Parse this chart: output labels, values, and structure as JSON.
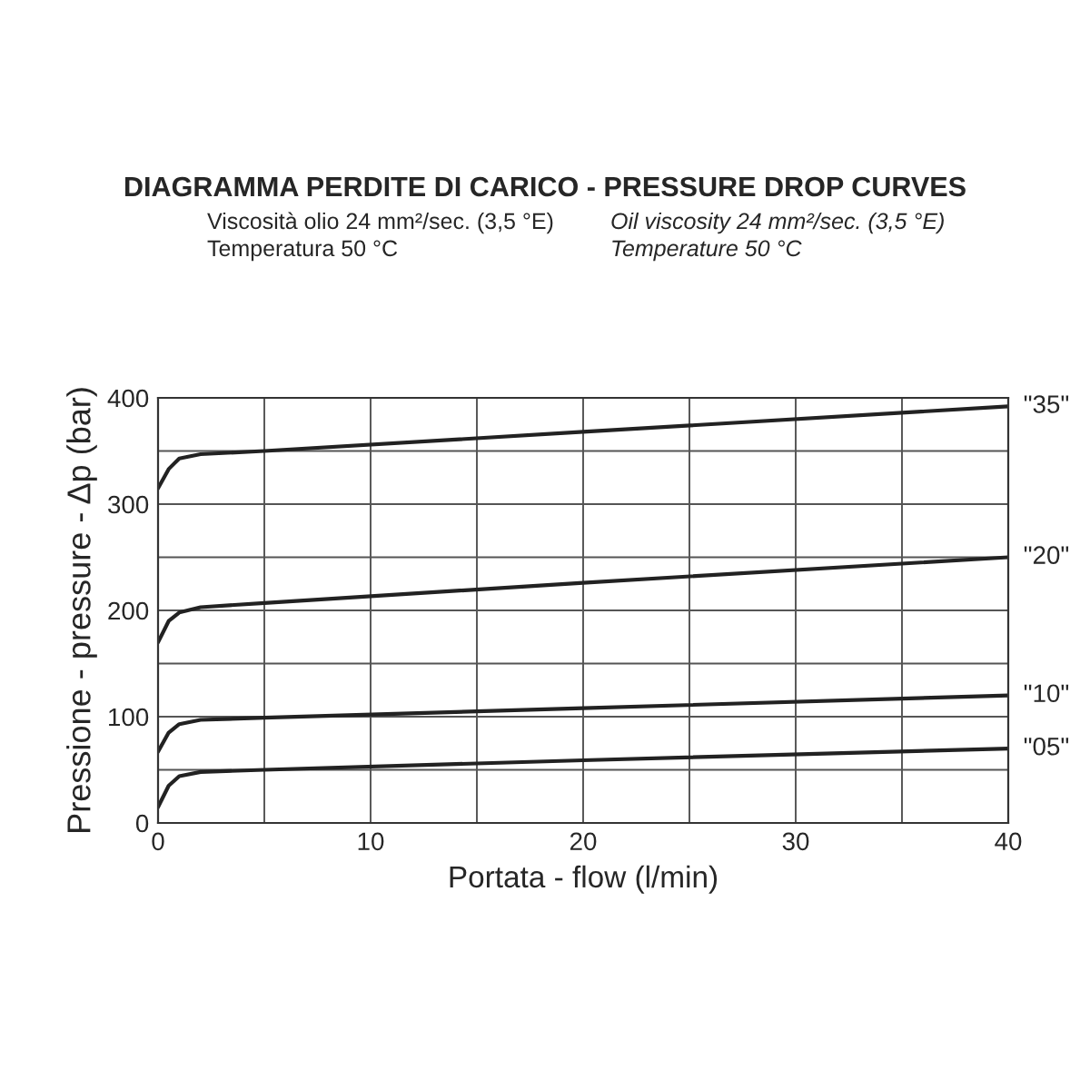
{
  "chart_data": {
    "type": "line",
    "title": "DIAGRAMMA PERDITE DI CARICO - PRESSURE DROP CURVES",
    "annotations": [
      "Viscosità olio 24 mm²/sec. (3,5 °E)",
      "Temperatura 50 °C",
      "Oil viscosity 24 mm²/sec. (3,5 °E)",
      "Temperature 50 °C"
    ],
    "xlabel": "Portata - flow (l/min)",
    "ylabel": "Pressione - pressure - Δp (bar)",
    "x": [
      0,
      0.5,
      1,
      2,
      5,
      20,
      40
    ],
    "series": [
      {
        "name": "\"35\"",
        "color": "#222222",
        "values": [
          315,
          333,
          343,
          347,
          350,
          368,
          392
        ]
      },
      {
        "name": "\"20\"",
        "color": "#222222",
        "values": [
          170,
          190,
          198,
          203,
          207,
          226,
          250
        ]
      },
      {
        "name": "\"10\"",
        "color": "#222222",
        "values": [
          67,
          85,
          93,
          97,
          99,
          108,
          120
        ]
      },
      {
        "name": "\"05\"",
        "color": "#222222",
        "values": [
          15,
          35,
          44,
          48,
          50,
          59,
          70
        ]
      }
    ],
    "xlim": [
      0,
      40
    ],
    "ylim": [
      0,
      400
    ],
    "xticks": [
      0,
      {
        "value": 5,
        "label": null
      },
      10,
      {
        "value": 15,
        "label": null
      },
      20,
      {
        "value": 25,
        "label": null
      },
      30,
      {
        "value": 35,
        "label": null
      },
      40
    ],
    "yticks": [
      0,
      {
        "value": 50,
        "label": null
      },
      100,
      {
        "value": 150,
        "label": null
      },
      200,
      {
        "value": 250,
        "label": null
      },
      300,
      {
        "value": 350,
        "label": null
      },
      400
    ],
    "grid": true,
    "legend": false,
    "marker": "none",
    "line_style": "solid"
  }
}
